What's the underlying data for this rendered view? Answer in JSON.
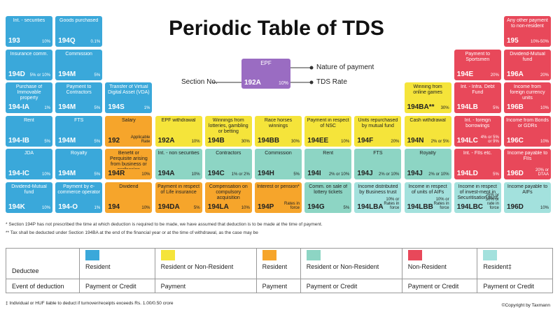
{
  "title": "Periodic Table of TDS",
  "key": {
    "nature": "EPF",
    "section": "192A",
    "rate": "10%",
    "color": "#9a6cc2",
    "section_label": "Section No.",
    "nature_label": "Nature of payment",
    "rate_label": "TDS Rate"
  },
  "table": {
    "rows": [
      [
        {
          "nature": "Int. - securities",
          "section": "193",
          "rate": "10%",
          "color": "#3aa8da"
        },
        {
          "nature": "Goods purchased",
          "section": "194Q",
          "rate": "0.1%",
          "color": "#3aa8da"
        },
        null,
        null,
        null,
        null,
        null,
        null,
        null,
        null,
        {
          "nature": "Any other payment to non-resident",
          "section": "195",
          "rate": "10%-50%",
          "color": "#e8485a"
        }
      ],
      [
        {
          "nature": "Insurance comm.",
          "section": "194D",
          "rate": "5% or 10%",
          "color": "#3aa8da"
        },
        {
          "nature": "Commission",
          "section": "194M",
          "rate": "5%",
          "color": "#3aa8da"
        },
        null,
        null,
        null,
        null,
        null,
        null,
        null,
        {
          "nature": "Payment to Sportsmen",
          "section": "194E",
          "rate": "20%",
          "color": "#e8485a"
        },
        {
          "nature": "Dividend-Mutual fund",
          "section": "196A",
          "rate": "20%",
          "color": "#e8485a"
        }
      ],
      [
        {
          "nature": "Purchase of Immovable property",
          "section": "194-IA",
          "rate": "1%",
          "color": "#3aa8da"
        },
        {
          "nature": "Payment to Contractors",
          "section": "194M",
          "rate": "5%",
          "color": "#3aa8da"
        },
        {
          "nature": "Transfer of Virtual Digital Asset (VDA)",
          "section": "194S",
          "rate": "1%",
          "color": "#3aa8da"
        },
        null,
        null,
        null,
        null,
        null,
        {
          "nature": "Winning from online games",
          "section": "194BA**",
          "rate": "30%",
          "color": "#f5e43a"
        },
        {
          "nature": "Int. - Infra. Debt Fund",
          "section": "194LB",
          "rate": "5%",
          "color": "#e8485a"
        },
        {
          "nature": "Income from foreign currency units",
          "section": "196B",
          "rate": "10%",
          "color": "#e8485a"
        }
      ],
      [
        {
          "nature": "Rent",
          "section": "194-IB",
          "rate": "5%",
          "color": "#3aa8da"
        },
        {
          "nature": "FTS",
          "section": "194M",
          "rate": "5%",
          "color": "#3aa8da"
        },
        {
          "nature": "Salary",
          "section": "192",
          "rate": "Applicable Rate",
          "color": "#f6a52b"
        },
        {
          "nature": "EPF withdrawal",
          "section": "192A",
          "rate": "10%",
          "color": "#f5e43a"
        },
        {
          "nature": "Winnings from lotteries, gambling or betting",
          "section": "194B",
          "rate": "30%",
          "color": "#f5e43a"
        },
        {
          "nature": "Race horses winnings",
          "section": "194BB",
          "rate": "30%",
          "color": "#f5e43a"
        },
        {
          "nature": "Payment in respect of NSC",
          "section": "194EE",
          "rate": "10%",
          "color": "#f5e43a"
        },
        {
          "nature": "Units repurchased by mutual fund",
          "section": "194F",
          "rate": "20%",
          "color": "#f5e43a"
        },
        {
          "nature": "Cash withdrawal",
          "section": "194N",
          "rate": "2% or 5%",
          "color": "#f5e43a"
        },
        {
          "nature": "Int. - foreign borrowings",
          "section": "194LC",
          "rate": "4% or 5% or 9%",
          "color": "#e8485a"
        },
        {
          "nature": "Income from Bonds or GDRs",
          "section": "196C",
          "rate": "10%",
          "color": "#e8485a"
        }
      ],
      [
        {
          "nature": "JDA",
          "section": "194-IC",
          "rate": "10%",
          "color": "#3aa8da"
        },
        {
          "nature": "Royalty",
          "section": "194M",
          "rate": "5%",
          "color": "#3aa8da"
        },
        {
          "nature": "Benefit or Perquisite arising from business or profession",
          "section": "194R",
          "rate": "10%",
          "color": "#f6a52b"
        },
        {
          "nature": "Int. - non securities",
          "section": "194A",
          "rate": "10%",
          "color": "#8dd5c4"
        },
        {
          "nature": "Contractors",
          "section": "194C",
          "rate": "1% or 2%",
          "color": "#8dd5c4"
        },
        {
          "nature": "Commission",
          "section": "194H",
          "rate": "5%",
          "color": "#8dd5c4"
        },
        {
          "nature": "Rent",
          "section": "194I",
          "rate": "2% or 10%",
          "color": "#8dd5c4"
        },
        {
          "nature": "FTS",
          "section": "194J",
          "rate": "2% or 10%",
          "color": "#8dd5c4"
        },
        {
          "nature": "Royalty",
          "section": "194J",
          "rate": "2% or 10%",
          "color": "#8dd5c4"
        },
        {
          "nature": "Int. - FIIs etc.",
          "section": "194LD",
          "rate": "5%",
          "color": "#e8485a"
        },
        {
          "nature": "Income payable to FIIs",
          "section": "196D",
          "rate": "20% or DTAA",
          "color": "#e8485a"
        }
      ],
      [
        {
          "nature": "Dividend-Mutual fund",
          "section": "194K",
          "rate": "10%",
          "color": "#3aa8da"
        },
        {
          "nature": "Payment by e-commerce operator",
          "section": "194-O",
          "rate": "1%",
          "color": "#3aa8da"
        },
        {
          "nature": "Dividend",
          "section": "194",
          "rate": "10%",
          "color": "#f6a52b"
        },
        {
          "nature": "Payment in respect of Life insurance",
          "section": "194DA",
          "rate": "5%",
          "color": "#f6a52b"
        },
        {
          "nature": "Compensation on compulsory acquisition",
          "section": "194LA",
          "rate": "10%",
          "color": "#f6a52b"
        },
        {
          "nature": "Interest or pension*",
          "section": "194P",
          "rate": "Rates in force",
          "color": "#f6a52b"
        },
        {
          "nature": "Comm. on sale of lottery tickets",
          "section": "194G",
          "rate": "5%",
          "color": "#8dd5c4"
        },
        {
          "nature": "Income distributed by Business trust",
          "section": "194LBA",
          "rate": "10% or Rates in force",
          "color": "#a3e1dd"
        },
        {
          "nature": "Income in respect of units of AIFs",
          "section": "194LBB",
          "rate": "10% or Rates in force",
          "color": "#a3e1dd"
        },
        {
          "nature": "Income in respect of invest-ment in Securitisation trust",
          "section": "194LBC",
          "rate": "25% or 30% or rate in force",
          "color": "#a3e1dd"
        },
        {
          "nature": "Income payable to AIFs",
          "section": "196D",
          "rate": "10%",
          "color": "#a3e1dd"
        }
      ]
    ]
  },
  "notes": [
    "*    Section 194P has not prescribed the time at which deduction is required to be made, we have assumed that deduction is to be made at the time of payment.",
    "**  Tax shall be deducted under Section 194BA at the end of the financial year or at the time of withdrawal, as the case may be"
  ],
  "legend": {
    "headers": [
      "Deductee",
      "Event of deduction"
    ],
    "columns": [
      {
        "color": "#3aa8da",
        "deductee": "Resident",
        "event": "Payment or Credit"
      },
      {
        "color": "#f5e43a",
        "deductee": "Resident or Non-Resident",
        "event": "Payment"
      },
      {
        "color": "#f6a52b",
        "deductee": "Resident",
        "event": "Payment"
      },
      {
        "color": "#8dd5c4",
        "deductee": "Resident or Non-Resident",
        "event": "Payment or Credit"
      },
      {
        "color": "#e8485a",
        "deductee": "Non-Resident",
        "event": "Payment or Credit"
      },
      {
        "color": "#a3e1dd",
        "deductee": "Resident‡",
        "event": "Payment or Credit"
      }
    ]
  },
  "footnote": "‡ Individual or HUF liable to deduct if turnover/receipts exceeds Rs. 1.00/0.50 crore",
  "copyright": "©Copyright by Taxmann"
}
